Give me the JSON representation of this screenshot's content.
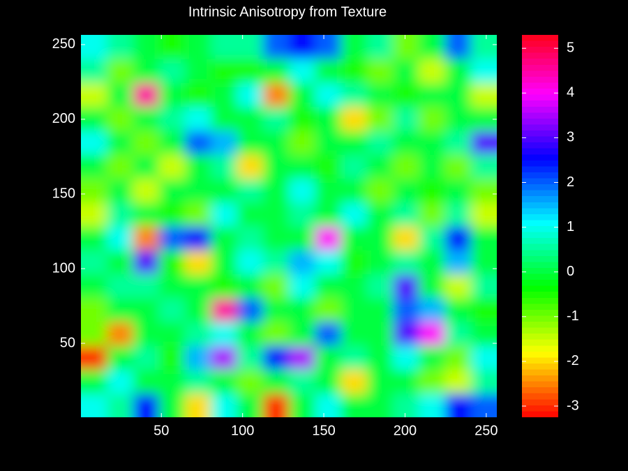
{
  "chart_data": {
    "type": "heatmap",
    "title": "Intrinsic Anisotropy from Texture",
    "xlim": [
      0.5,
      256.5
    ],
    "ylim": [
      0.5,
      256.5
    ],
    "xticks": [
      50,
      100,
      150,
      200,
      250
    ],
    "yticks": [
      50,
      100,
      150,
      200,
      250
    ],
    "colormap": "hsv",
    "clim": [
      -3.25,
      5.3
    ],
    "colorbar_ticks": [
      -3,
      -2,
      -1,
      0,
      1,
      2,
      3,
      4,
      5
    ],
    "z": [
      [
        1,
        0.5,
        2.5,
        0,
        -2,
        1,
        0,
        -3,
        0,
        1,
        0,
        0,
        0.5,
        1,
        2.5,
        2
      ],
      [
        0,
        1,
        0,
        0,
        0.5,
        0,
        -1,
        0,
        0.5,
        0,
        -2,
        0,
        0,
        -1,
        -1.5,
        0.5
      ],
      [
        -3,
        0,
        0.5,
        -0.5,
        1.5,
        3.5,
        0.5,
        2.5,
        3.5,
        0,
        0.5,
        0,
        1,
        0,
        -1,
        1
      ],
      [
        -1,
        -2.5,
        0,
        0,
        0.5,
        1,
        0,
        -1,
        0,
        2,
        0,
        0,
        3,
        4,
        0.5,
        0
      ],
      [
        -1,
        0,
        0,
        0.5,
        0,
        4.5,
        2,
        0,
        0,
        -1,
        0,
        0,
        2,
        1.5,
        0,
        -0.5
      ],
      [
        0,
        0.5,
        0.5,
        0,
        0,
        -0.5,
        0,
        -1,
        1,
        0,
        0,
        0.5,
        3,
        0,
        -1.5,
        0.5
      ],
      [
        0.5,
        0,
        3,
        -0.5,
        -2,
        0,
        1,
        0.5,
        1.5,
        1,
        -0.5,
        0,
        0.5,
        0,
        1.5,
        0
      ],
      [
        0,
        1,
        -2.5,
        2,
        2.5,
        0,
        0.5,
        0,
        0,
        4,
        0,
        0,
        -2,
        0.5,
        2.5,
        0
      ],
      [
        -1.5,
        0.5,
        0,
        -0.5,
        -1,
        1,
        0,
        0,
        0.5,
        0,
        1,
        0,
        0.5,
        -1,
        0.5,
        -1.5
      ],
      [
        -1,
        0,
        -1.5,
        0,
        0,
        0,
        0.5,
        0,
        1,
        0,
        0,
        -1,
        0,
        -0.5,
        0,
        -1
      ],
      [
        0,
        -1,
        0,
        -1.5,
        0,
        0.5,
        -2,
        0,
        0,
        -0.5,
        0.5,
        0,
        -1,
        0,
        -1,
        0.5
      ],
      [
        1,
        0,
        -1,
        0,
        2,
        1.5,
        0,
        0,
        -1,
        0,
        0,
        0.5,
        0,
        0,
        0.5,
        3
      ],
      [
        0,
        -1,
        0,
        0.5,
        1,
        0,
        0,
        0.5,
        -0.5,
        0,
        -2,
        -1,
        0.5,
        -1,
        0,
        0
      ],
      [
        -1.5,
        0,
        4.5,
        0,
        -0.5,
        0,
        1,
        -2.5,
        0,
        1,
        0.5,
        0,
        -0.5,
        0,
        0,
        -1.5
      ],
      [
        0.5,
        -1,
        0,
        0.5,
        0,
        -0.5,
        -0.5,
        0,
        1,
        0,
        -0.5,
        -1,
        0,
        -1.5,
        0,
        1
      ],
      [
        1,
        0.5,
        0,
        -0.5,
        0,
        0.5,
        0.5,
        2,
        2.5,
        2,
        0,
        0.5,
        -1,
        0,
        2,
        0.5
      ]
    ]
  }
}
